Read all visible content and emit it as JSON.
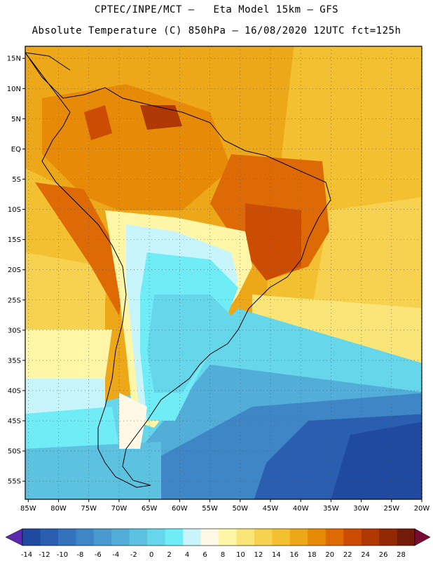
{
  "header": {
    "line1": "CPTEC/INPE/MCT –   Eta Model 15km – GFS",
    "line2": "Absolute Temperature (C) 850hPa – 16/08/2020 12UTC fct=125h"
  },
  "map": {
    "lat_labels": [
      "15N",
      "10N",
      "5N",
      "EQ",
      "5S",
      "10S",
      "15S",
      "20S",
      "25S",
      "30S",
      "35S",
      "40S",
      "45S",
      "50S",
      "55S"
    ],
    "lat_values": [
      15,
      10,
      5,
      0,
      -5,
      -10,
      -15,
      -20,
      -25,
      -30,
      -35,
      -40,
      -45,
      -50,
      -55
    ],
    "lon_labels": [
      "85W",
      "80W",
      "75W",
      "70W",
      "65W",
      "60W",
      "55W",
      "50W",
      "45W",
      "40W",
      "35W",
      "30W",
      "25W",
      "20W"
    ],
    "lon_values": [
      -85,
      -80,
      -75,
      -70,
      -65,
      -60,
      -55,
      -50,
      -45,
      -40,
      -35,
      -30,
      -25,
      -20
    ],
    "lon_range": [
      -85.5,
      -20
    ],
    "lat_range": [
      -58,
      17
    ]
  },
  "colorbar": {
    "labels": [
      "-14",
      "-12",
      "-10",
      "-8",
      "-6",
      "-4",
      "-2",
      "0",
      "2",
      "4",
      "6",
      "8",
      "10",
      "12",
      "14",
      "16",
      "18",
      "20",
      "22",
      "24",
      "26",
      "28"
    ],
    "low_color": "#5a2bb0",
    "high_color": "#7a0a30",
    "colors": [
      "#1f4aa0",
      "#2a5eb0",
      "#3572bc",
      "#3f86c6",
      "#4a9ad0",
      "#52aed8",
      "#5cc2e0",
      "#66d6ea",
      "#70ecf6",
      "#c8f4fc",
      "#fff8e6",
      "#fff6a8",
      "#fae678",
      "#f6d250",
      "#f2c030",
      "#eca818",
      "#e68a08",
      "#de6a06",
      "#cc4c04",
      "#b03804",
      "#922804",
      "#741c08"
    ]
  }
}
